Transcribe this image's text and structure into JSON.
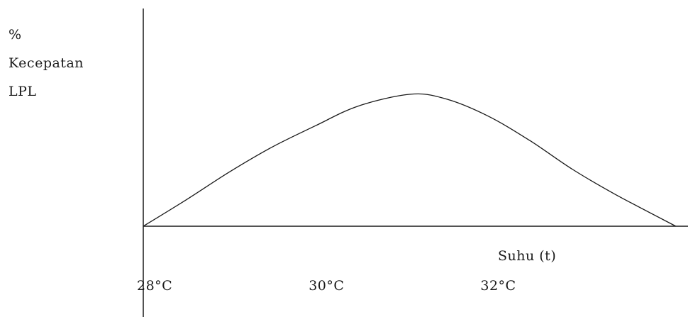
{
  "chart_data": {
    "type": "line",
    "ylabel_lines": [
      "%",
      "Kecepatan",
      "LPL"
    ],
    "xlabel": "Suhu (t)",
    "x_ticks": [
      "28°C",
      "30°C",
      "32°C"
    ],
    "x_tick_values": [
      28,
      30,
      32
    ],
    "xlim": [
      28,
      34.4
    ],
    "ylim": [
      0,
      100
    ],
    "series": [
      {
        "x": [
          28,
          28.5,
          29,
          29.5,
          30,
          30.5,
          31.1,
          31.5,
          32,
          32.5,
          33,
          33.5,
          34.2
        ],
        "values": [
          0,
          20,
          41,
          60,
          76,
          91,
          100,
          97,
          84,
          65,
          43,
          24,
          0
        ]
      }
    ],
    "grid": false
  }
}
